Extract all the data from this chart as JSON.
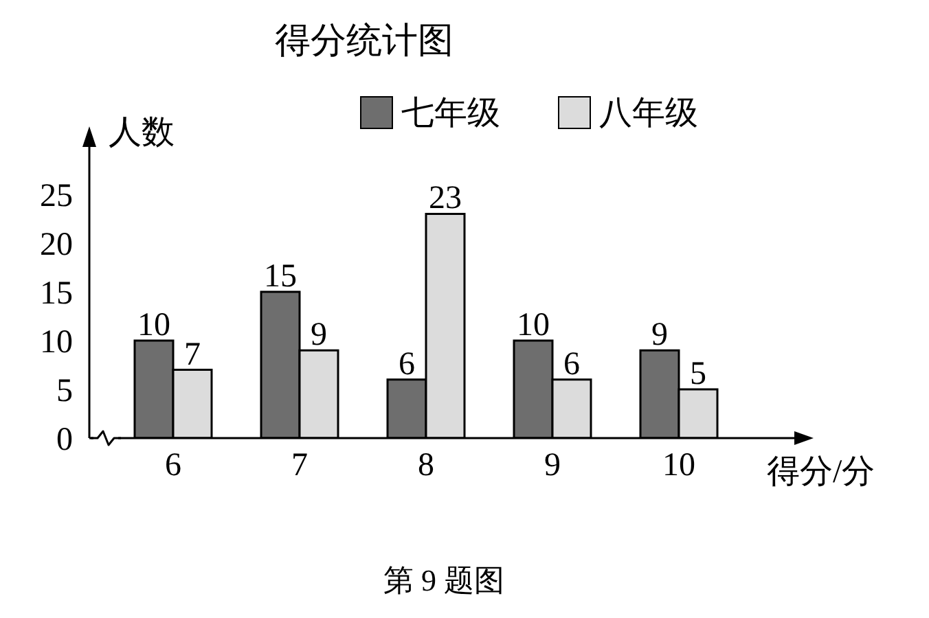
{
  "chart_data": {
    "type": "bar",
    "title": "得分统计图",
    "xlabel": "得分/分",
    "ylabel": "人数",
    "annotations": [
      "第 9 题图"
    ],
    "categories": [
      "6",
      "7",
      "8",
      "9",
      "10"
    ],
    "series": [
      {
        "name": "七年级",
        "color": "#6e6e6e",
        "values": [
          10,
          15,
          6,
          10,
          9
        ]
      },
      {
        "name": "八年级",
        "color": "#dcdcdc",
        "values": [
          7,
          9,
          23,
          6,
          5
        ]
      }
    ],
    "ylim": [
      0,
      30
    ],
    "yticks": [
      0,
      5,
      10,
      15,
      20,
      25
    ],
    "data_labels": true,
    "legend": "top"
  }
}
